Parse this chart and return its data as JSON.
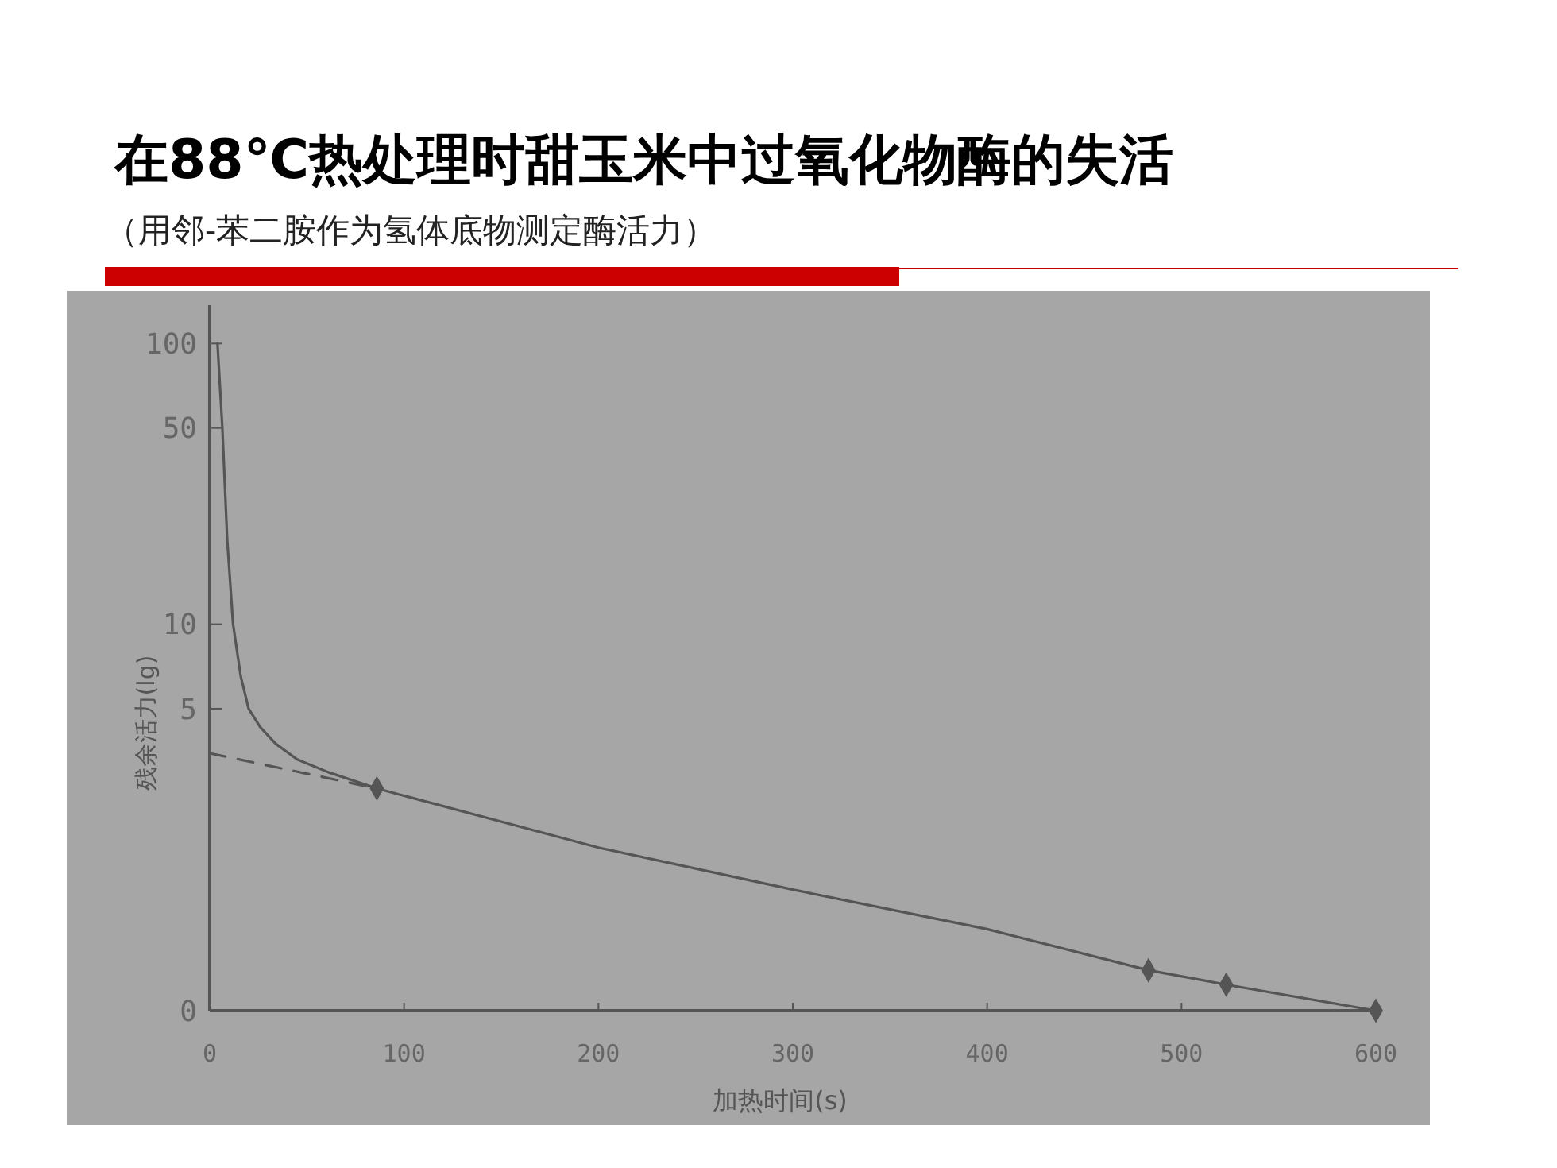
{
  "chart_data": {
    "type": "line",
    "title": "在88℃热处理时甜玉米中过氧化物酶的失活",
    "subtitle": "（用邻-苯二胺作为氢体底物测定酶活力）",
    "xlabel": "加热时间(s)",
    "ylabel": "残余活力(lg)",
    "log": "y",
    "xlim": [
      0,
      600
    ],
    "xticks": [
      0,
      100,
      200,
      300,
      400,
      500,
      600
    ],
    "ylim": [
      0.42,
      137
    ],
    "yticks": [
      {
        "value": 0.42,
        "label": "0"
      },
      5,
      10,
      50,
      100
    ],
    "series": [
      {
        "color": "#555555",
        "line_style": "solid",
        "marker": "none",
        "x": [
          4,
          6.5,
          9,
          12,
          16,
          20,
          26,
          34,
          45,
          61,
          86,
          200,
          301,
          400,
          483,
          523,
          600
        ],
        "values": [
          100,
          50,
          20,
          10,
          6.5,
          5,
          4.3,
          3.75,
          3.3,
          2.97,
          2.6,
          1.6,
          1.13,
          0.82,
          0.585,
          0.52,
          0.42
        ]
      },
      {
        "color": "#555555",
        "line_style": "dashed",
        "marker": "none",
        "x": [
          0,
          86
        ],
        "values": [
          3.47,
          2.6
        ]
      },
      {
        "type": "scatter",
        "color": "#555555",
        "marker": "diamond",
        "x": [
          86,
          483,
          523,
          600
        ],
        "values": [
          2.6,
          0.585,
          0.52,
          0.42
        ]
      }
    ]
  }
}
